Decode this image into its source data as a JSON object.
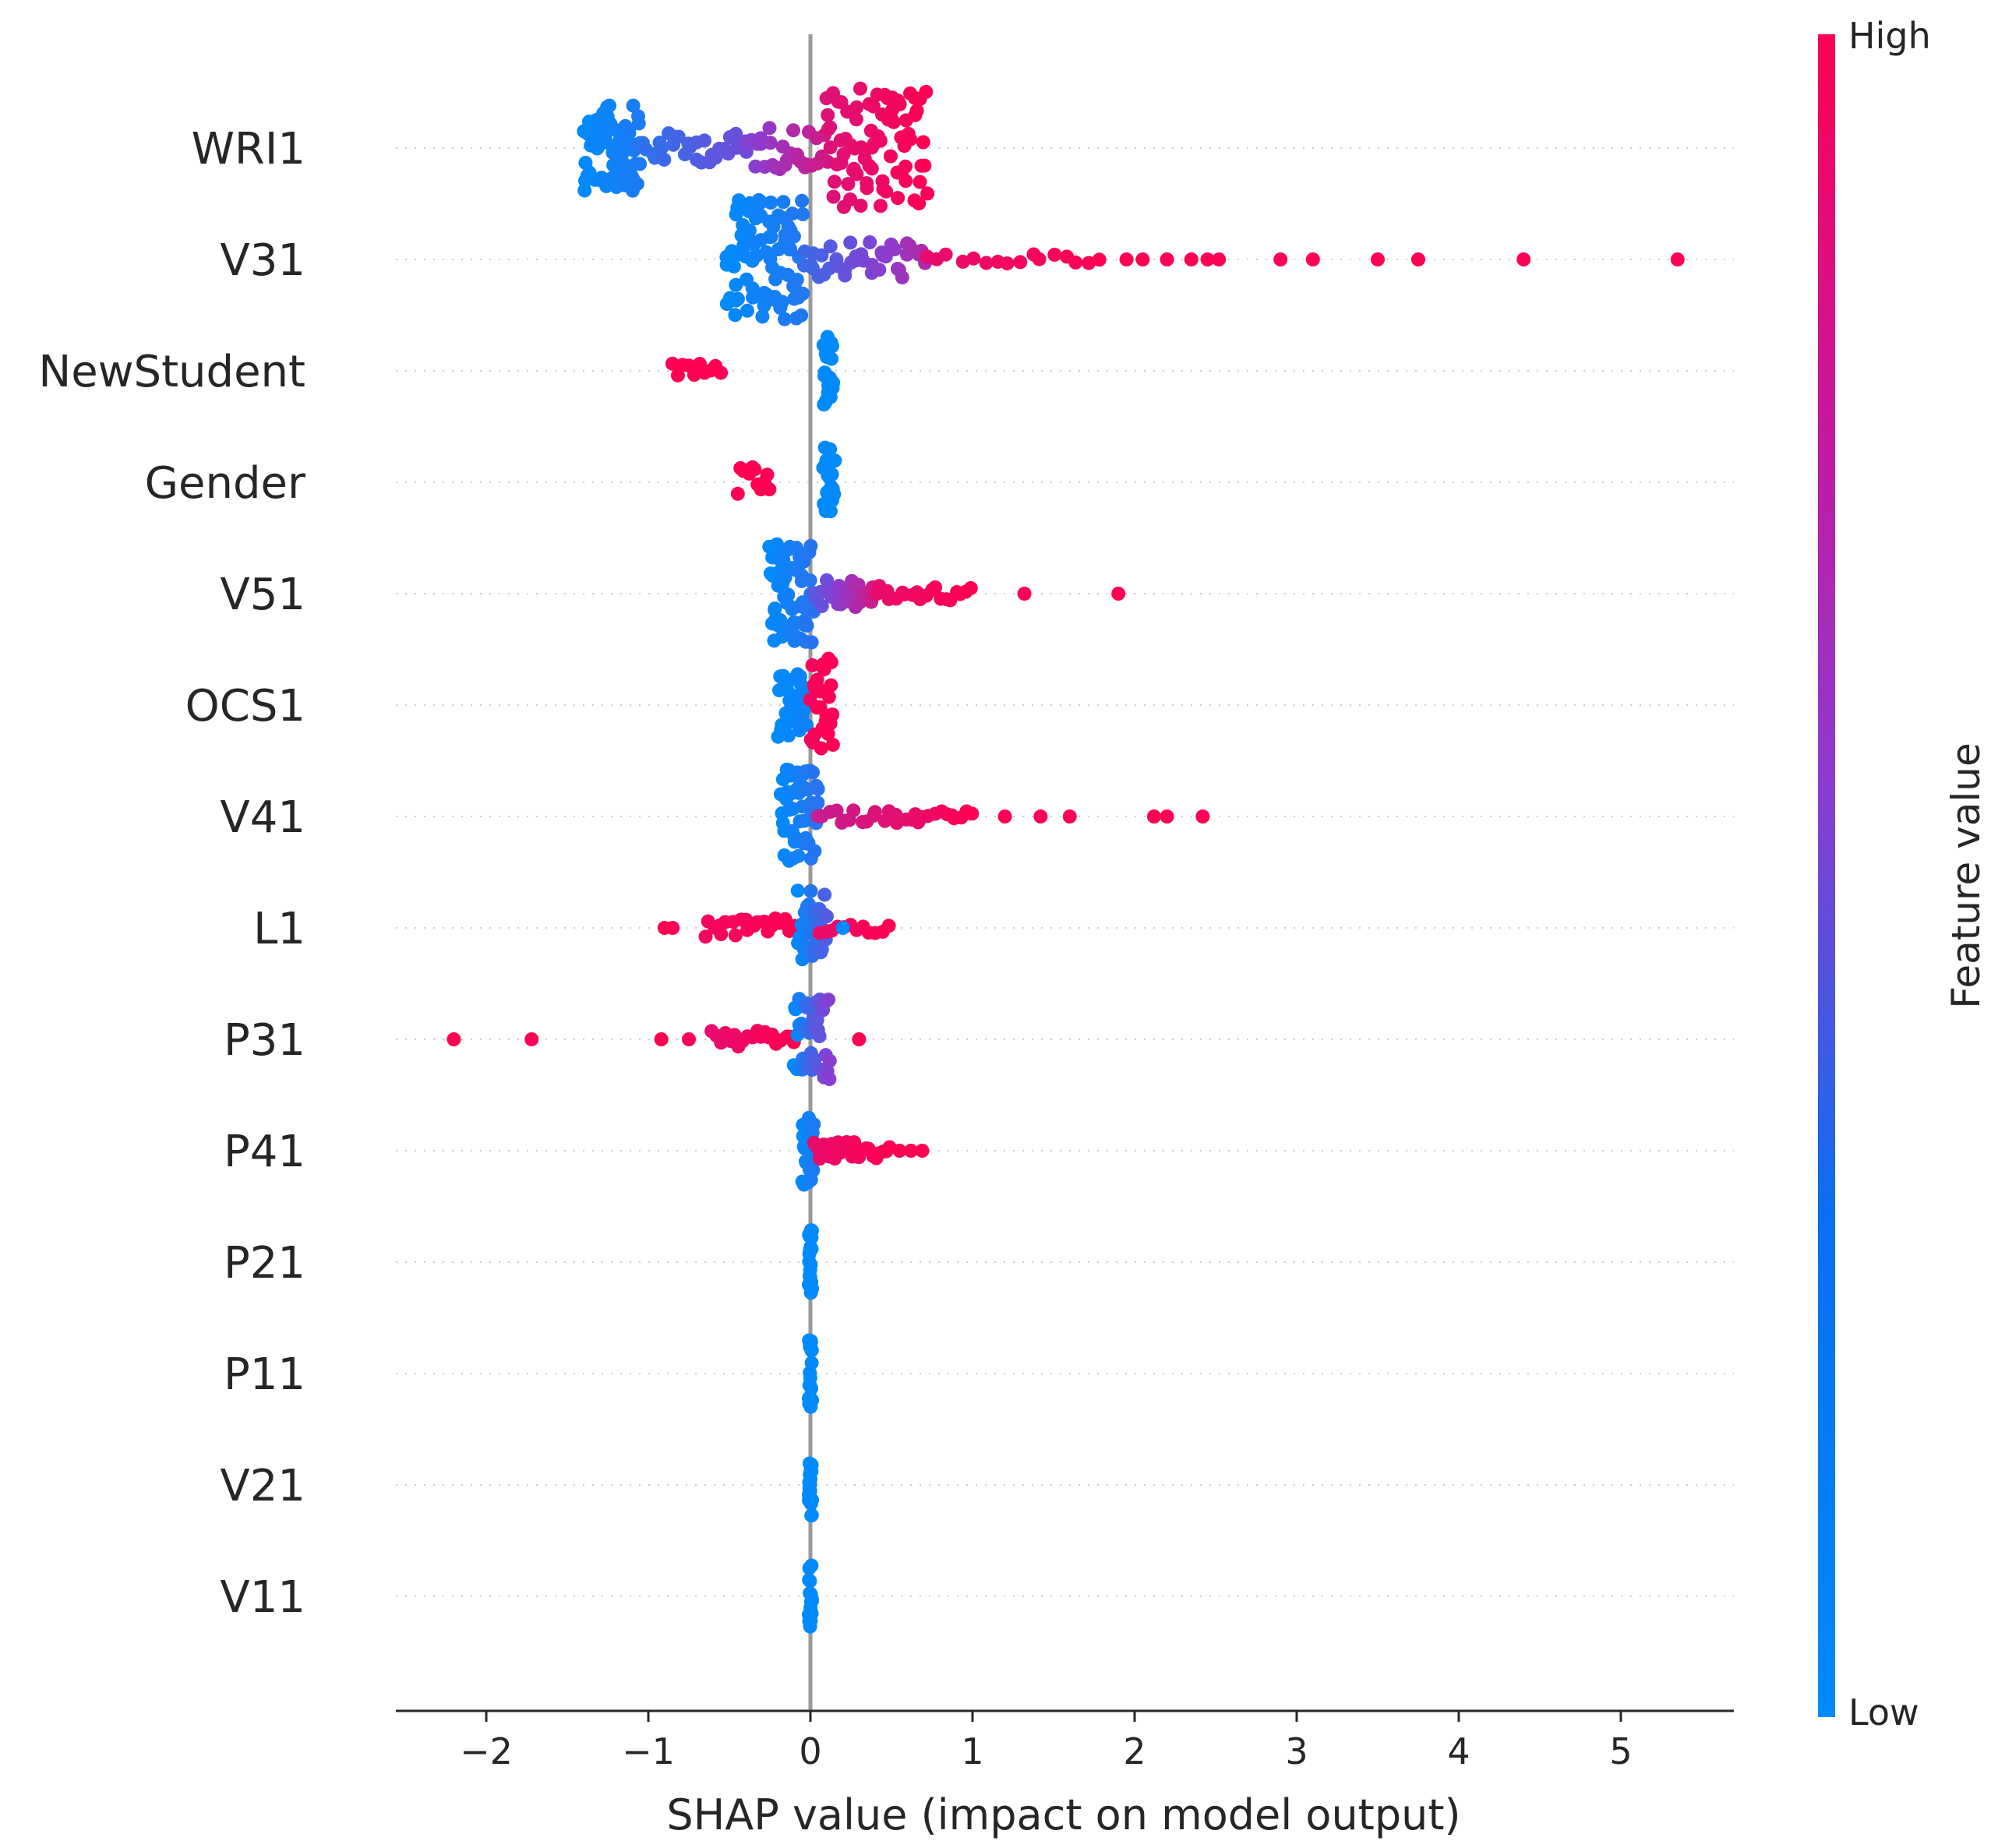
{
  "chart_data": {
    "type": "scatter",
    "subtype": "shap-beeswarm",
    "title": "",
    "xlabel": "SHAP value (impact on model output)",
    "ylabel": "",
    "xlim": [
      -2.6,
      5.7
    ],
    "xticks": [
      -2,
      -1,
      0,
      1,
      2,
      3,
      4,
      5
    ],
    "xtick_labels": [
      "−2",
      "−1",
      "0",
      "1",
      "2",
      "3",
      "4",
      "5"
    ],
    "grid": false,
    "colorbar": {
      "title": "Feature value",
      "high_label": "High",
      "low_label": "Low",
      "low_color": "#008afb",
      "mid_color": "#8a3dd0",
      "high_color": "#ff0052"
    },
    "features": [
      {
        "name": "WRI1",
        "clusters": [
          {
            "x": [
              -1.4,
              -1.05
            ],
            "c": [
              0.0,
              0.1
            ],
            "h": 1.0,
            "n": 70
          },
          {
            "x": [
              -1.05,
              -0.4
            ],
            "c": [
              0.15,
              0.4
            ],
            "h": 0.35,
            "n": 30
          },
          {
            "x": [
              -0.4,
              0.1
            ],
            "c": [
              0.45,
              0.8
            ],
            "h": 0.5,
            "n": 30
          },
          {
            "x": [
              0.1,
              0.72
            ],
            "c": [
              0.85,
              1.0
            ],
            "h": 1.4,
            "n": 80
          }
        ],
        "points": []
      },
      {
        "name": "V31",
        "clusters": [
          {
            "x": [
              -0.52,
              -0.05
            ],
            "c": [
              0.0,
              0.12
            ],
            "h": 1.4,
            "n": 90
          },
          {
            "x": [
              -0.05,
              0.7
            ],
            "c": [
              0.2,
              0.65
            ],
            "h": 0.45,
            "n": 40
          },
          {
            "x": [
              0.7,
              1.8
            ],
            "c": [
              0.9,
              1.0
            ],
            "h": 0.12,
            "n": 16
          }
        ],
        "points": [
          {
            "x": 1.95,
            "c": 1
          },
          {
            "x": 2.05,
            "c": 1
          },
          {
            "x": 2.2,
            "c": 1
          },
          {
            "x": 2.35,
            "c": 1
          },
          {
            "x": 2.45,
            "c": 1
          },
          {
            "x": 2.52,
            "c": 1
          },
          {
            "x": 2.9,
            "c": 1
          },
          {
            "x": 3.1,
            "c": 1
          },
          {
            "x": 3.5,
            "c": 1
          },
          {
            "x": 3.75,
            "c": 1
          },
          {
            "x": 4.4,
            "c": 1
          },
          {
            "x": 5.35,
            "c": 1
          }
        ]
      },
      {
        "name": "NewStudent",
        "clusters": [
          {
            "x": [
              -0.85,
              -0.55
            ],
            "c": [
              1.0,
              1.0
            ],
            "h": 0.25,
            "n": 10
          },
          {
            "x": [
              0.08,
              0.14
            ],
            "c": [
              0.0,
              0.0
            ],
            "h": 0.9,
            "n": 20
          }
        ],
        "points": []
      },
      {
        "name": "Gender",
        "clusters": [
          {
            "x": [
              -0.45,
              -0.25
            ],
            "c": [
              1.0,
              1.0
            ],
            "h": 0.35,
            "n": 12
          },
          {
            "x": [
              0.08,
              0.15
            ],
            "c": [
              0.0,
              0.0
            ],
            "h": 0.85,
            "n": 20
          }
        ],
        "points": []
      },
      {
        "name": "V51",
        "clusters": [
          {
            "x": [
              -0.25,
              0.02
            ],
            "c": [
              0.0,
              0.15
            ],
            "h": 1.2,
            "n": 60
          },
          {
            "x": [
              0.02,
              0.4
            ],
            "c": [
              0.3,
              0.8
            ],
            "h": 0.35,
            "n": 30
          },
          {
            "x": [
              0.4,
              1.0
            ],
            "c": [
              0.9,
              1.0
            ],
            "h": 0.18,
            "n": 20
          }
        ],
        "points": [
          {
            "x": 1.32,
            "c": 1
          },
          {
            "x": 1.9,
            "c": 1
          }
        ]
      },
      {
        "name": "OCS1",
        "clusters": [
          {
            "x": [
              -0.2,
              -0.02
            ],
            "c": [
              0.0,
              0.05
            ],
            "h": 0.8,
            "n": 30
          },
          {
            "x": [
              0.0,
              0.14
            ],
            "c": [
              0.95,
              1.0
            ],
            "h": 1.1,
            "n": 30
          }
        ],
        "points": []
      },
      {
        "name": "V41",
        "clusters": [
          {
            "x": [
              -0.18,
              0.05
            ],
            "c": [
              0.0,
              0.15
            ],
            "h": 1.1,
            "n": 50
          },
          {
            "x": [
              0.05,
              1.0
            ],
            "c": [
              0.75,
              1.0
            ],
            "h": 0.15,
            "n": 30
          }
        ],
        "points": [
          {
            "x": 1.2,
            "c": 1
          },
          {
            "x": 1.42,
            "c": 1
          },
          {
            "x": 1.6,
            "c": 1
          },
          {
            "x": 2.12,
            "c": 1
          },
          {
            "x": 2.2,
            "c": 1
          },
          {
            "x": 2.42,
            "c": 1
          }
        ]
      },
      {
        "name": "L1",
        "clusters": [
          {
            "x": [
              -0.65,
              0.0
            ],
            "c": [
              0.95,
              1.0
            ],
            "h": 0.22,
            "n": 25
          },
          {
            "x": [
              -0.08,
              0.1
            ],
            "c": [
              0.0,
              0.3
            ],
            "h": 0.9,
            "n": 30
          },
          {
            "x": [
              0.05,
              0.48
            ],
            "c": [
              0.9,
              1.0
            ],
            "h": 0.15,
            "n": 12
          }
        ],
        "points": [
          {
            "x": -0.9,
            "c": 1
          },
          {
            "x": -0.85,
            "c": 1
          },
          {
            "x": 0.2,
            "c": 0
          }
        ]
      },
      {
        "name": "P31",
        "clusters": [
          {
            "x": [
              -0.6,
              -0.1
            ],
            "c": [
              0.9,
              1.0
            ],
            "h": 0.2,
            "n": 20
          },
          {
            "x": [
              -0.1,
              0.12
            ],
            "c": [
              0.0,
              0.5
            ],
            "h": 0.95,
            "n": 40
          }
        ],
        "points": [
          {
            "x": -2.2,
            "c": 1
          },
          {
            "x": -1.72,
            "c": 1
          },
          {
            "x": -0.92,
            "c": 1
          },
          {
            "x": -0.75,
            "c": 1
          },
          {
            "x": 0.3,
            "c": 1
          }
        ]
      },
      {
        "name": "P41",
        "clusters": [
          {
            "x": [
              -0.05,
              0.02
            ],
            "c": [
              0.0,
              0.1
            ],
            "h": 0.8,
            "n": 25
          },
          {
            "x": [
              0.02,
              0.48
            ],
            "c": [
              0.9,
              1.0
            ],
            "h": 0.2,
            "n": 25
          }
        ],
        "points": [
          {
            "x": 0.55,
            "c": 1
          },
          {
            "x": 0.62,
            "c": 1
          },
          {
            "x": 0.69,
            "c": 1
          }
        ]
      },
      {
        "name": "P21",
        "clusters": [
          {
            "x": [
              -0.01,
              0.01
            ],
            "c": [
              0.0,
              0.0
            ],
            "h": 0.8,
            "n": 18
          }
        ],
        "points": []
      },
      {
        "name": "P11",
        "clusters": [
          {
            "x": [
              -0.01,
              0.01
            ],
            "c": [
              0.0,
              0.0
            ],
            "h": 0.8,
            "n": 18
          }
        ],
        "points": []
      },
      {
        "name": "V21",
        "clusters": [
          {
            "x": [
              -0.01,
              0.01
            ],
            "c": [
              0.0,
              0.0
            ],
            "h": 0.8,
            "n": 18
          }
        ],
        "points": []
      },
      {
        "name": "V11",
        "clusters": [
          {
            "x": [
              -0.01,
              0.01
            ],
            "c": [
              0.0,
              0.0
            ],
            "h": 0.8,
            "n": 18
          }
        ],
        "points": []
      }
    ]
  }
}
